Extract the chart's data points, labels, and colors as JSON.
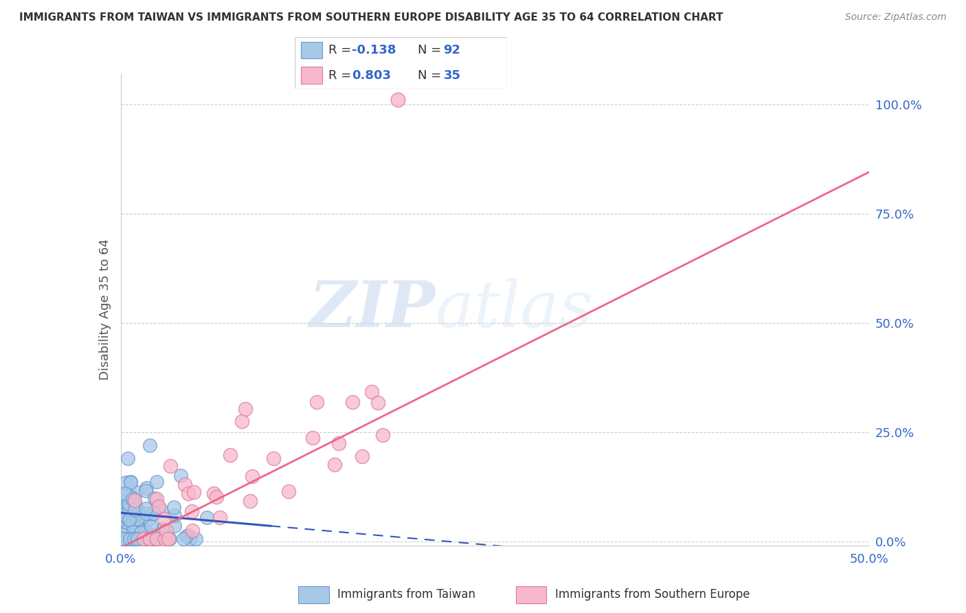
{
  "title": "IMMIGRANTS FROM TAIWAN VS IMMIGRANTS FROM SOUTHERN EUROPE DISABILITY AGE 35 TO 64 CORRELATION CHART",
  "source": "Source: ZipAtlas.com",
  "ylabel": "Disability Age 35 to 64",
  "ytick_values": [
    0,
    25,
    50,
    75,
    100
  ],
  "xlim": [
    0,
    50
  ],
  "ylim": [
    0,
    107
  ],
  "taiwan_color": "#a8c8e8",
  "taiwan_edge": "#6699cc",
  "southern_color": "#f8b8cc",
  "southern_edge": "#dd7799",
  "taiwan_R": -0.138,
  "taiwan_N": 92,
  "southern_R": 0.803,
  "southern_N": 35,
  "trend_taiwan_color": "#3355bb",
  "trend_southern_color": "#ee6688",
  "watermark_zip": "ZIP",
  "watermark_atlas": "atlas",
  "grid_color": "#cccccc",
  "legend_taiwan_label": "R = -0.138   N = 92",
  "legend_southern_label": "R =  0.803   N = 35",
  "bottom_legend_taiwan": "Immigrants from Taiwan",
  "bottom_legend_southern": "Immigrants from Southern Europe"
}
